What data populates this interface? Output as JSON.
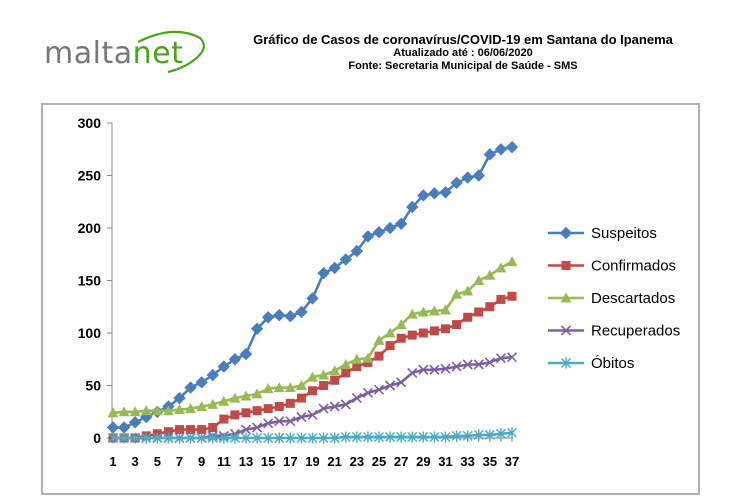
{
  "logo": {
    "part1": "malta",
    "part2": "net",
    "colors": {
      "gray": "#777777",
      "green": "#4aa51a"
    }
  },
  "header": {
    "title": "Gráfico de Casos de coronavírus/COVID-19 em Santana do Ipanema",
    "updated": "Atualizado até : 06/06/2020",
    "source": "Fonte: Secretaria Municipal de Saúde - SMS"
  },
  "chart_data": {
    "type": "line",
    "x": [
      1,
      2,
      3,
      4,
      5,
      6,
      7,
      8,
      9,
      10,
      11,
      12,
      13,
      14,
      15,
      16,
      17,
      18,
      19,
      20,
      21,
      22,
      23,
      24,
      25,
      26,
      27,
      28,
      29,
      30,
      31,
      32,
      33,
      34,
      35,
      36,
      37
    ],
    "x_tick_labels": [
      "1",
      "3",
      "5",
      "7",
      "9",
      "11",
      "13",
      "15",
      "17",
      "19",
      "21",
      "23",
      "25",
      "27",
      "29",
      "31",
      "33",
      "35",
      "37"
    ],
    "ylim": [
      0,
      300
    ],
    "y_ticks": [
      0,
      50,
      100,
      150,
      200,
      250,
      300
    ],
    "grid": false,
    "legend": "right",
    "series": [
      {
        "name": "Suspeitos",
        "color": "#4a7ebb",
        "marker": "diamond",
        "values": [
          10,
          10,
          15,
          20,
          25,
          30,
          38,
          48,
          53,
          60,
          68,
          75,
          80,
          104,
          115,
          117,
          116,
          120,
          133,
          157,
          162,
          170,
          178,
          192,
          196,
          200,
          204,
          220,
          231,
          233,
          234,
          243,
          248,
          250,
          270,
          275,
          277
        ]
      },
      {
        "name": "Confirmados",
        "color": "#be4b48",
        "marker": "square",
        "values": [
          0,
          0,
          0,
          2,
          4,
          6,
          8,
          8,
          8,
          10,
          18,
          22,
          24,
          26,
          28,
          30,
          33,
          38,
          45,
          50,
          55,
          62,
          68,
          72,
          78,
          88,
          95,
          98,
          100,
          102,
          104,
          108,
          115,
          120,
          125,
          132,
          135
        ]
      },
      {
        "name": "Descartados",
        "color": "#98b954",
        "marker": "triangle",
        "values": [
          24,
          25,
          25,
          26,
          26,
          26,
          27,
          28,
          30,
          32,
          35,
          38,
          40,
          42,
          47,
          48,
          48,
          50,
          58,
          60,
          64,
          70,
          75,
          76,
          93,
          100,
          108,
          118,
          120,
          121,
          122,
          137,
          140,
          150,
          155,
          162,
          168
        ]
      },
      {
        "name": "Recuperados",
        "color": "#7d60a0",
        "marker": "x",
        "values": [
          0,
          0,
          0,
          0,
          0,
          0,
          0,
          0,
          0,
          2,
          2,
          4,
          8,
          10,
          14,
          16,
          16,
          20,
          22,
          28,
          30,
          32,
          38,
          43,
          46,
          50,
          53,
          62,
          65,
          65,
          66,
          68,
          70,
          70,
          72,
          76,
          77
        ]
      },
      {
        "name": "Óbitos",
        "color": "#4bacc6",
        "marker": "star",
        "values": [
          0,
          0,
          0,
          0,
          0,
          0,
          0,
          0,
          0,
          0,
          0,
          0,
          0,
          0,
          0,
          0,
          0,
          0,
          0,
          0,
          0,
          1,
          1,
          1,
          1,
          1,
          1,
          1,
          1,
          1,
          1,
          2,
          2,
          3,
          3,
          4,
          5
        ]
      }
    ]
  }
}
